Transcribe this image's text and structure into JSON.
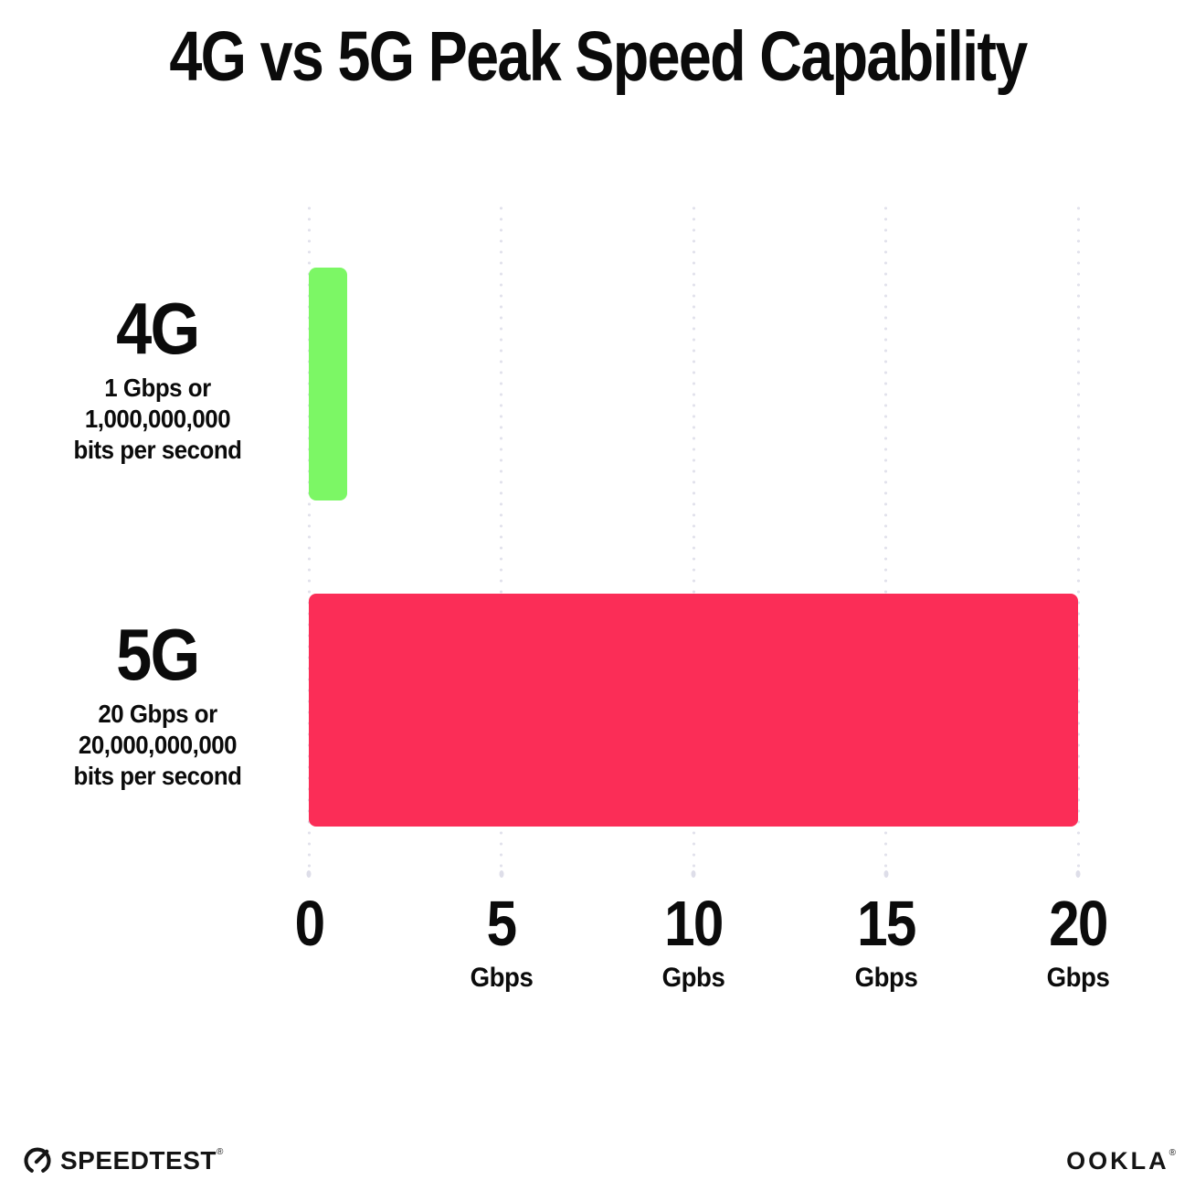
{
  "title": "4G vs 5G Peak Speed Capability",
  "chart_data": {
    "type": "bar",
    "orientation": "horizontal",
    "title": "4G vs 5G Peak Speed Capability",
    "categories": [
      "4G",
      "5G"
    ],
    "values": [
      1,
      20
    ],
    "bar_colors": [
      "#7cf765",
      "#fb2d57"
    ],
    "row_labels": [
      {
        "name": "4G",
        "sub_lines": [
          "1 Gbps or",
          "1,000,000,000",
          "bits per second"
        ]
      },
      {
        "name": "5G",
        "sub_lines": [
          "20 Gbps or",
          "20,000,000,000",
          "bits per second"
        ]
      }
    ],
    "x_ticks": [
      {
        "value": 0,
        "label": "0",
        "unit": ""
      },
      {
        "value": 5,
        "label": "5",
        "unit": "Gbps"
      },
      {
        "value": 10,
        "label": "10",
        "unit": "Gpbs"
      },
      {
        "value": 15,
        "label": "15",
        "unit": "Gbps"
      },
      {
        "value": 20,
        "label": "20",
        "unit": "Gbps"
      }
    ],
    "xlim": [
      0,
      20
    ],
    "xlabel": "",
    "ylabel": "",
    "grid": "dotted-vertical",
    "grid_color": "#e2e2ec",
    "legend": "none"
  },
  "footer": {
    "speedtest_label": "SPEEDTEST",
    "speedtest_mark": "®",
    "ookla_label": "OOKLA",
    "ookla_mark": "®"
  },
  "colors": {
    "background": "#ffffff",
    "text": "#0b0b0b",
    "bar_4g": "#7cf765",
    "bar_5g": "#fb2d57",
    "gridline_dots": "#e2e2ec"
  }
}
